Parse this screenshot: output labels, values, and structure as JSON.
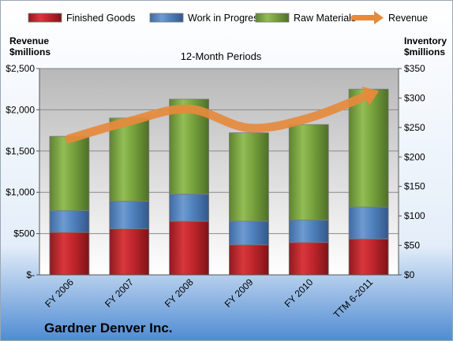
{
  "chart_data": {
    "type": "bar",
    "subtitle": "12-Month Periods",
    "company": "Gardner Denver Inc.",
    "categories": [
      "FY 2006",
      "FY 2007",
      "FY 2008",
      "FY 2009",
      "FY 2010",
      "TTM 6-2011"
    ],
    "left_axis": {
      "label_line1": "Revenue",
      "label_line2": "$millions",
      "ylim": [
        0,
        2500
      ],
      "ticks": [
        0,
        500,
        1000,
        1500,
        2000,
        2500
      ],
      "tick_labels": [
        "$-",
        "$500",
        "$1,000",
        "$1,500",
        "$2,000",
        "$2,500"
      ]
    },
    "right_axis": {
      "label_line1": "Inventory",
      "label_line2": "$millions",
      "ylim": [
        0,
        350
      ],
      "ticks": [
        0,
        50,
        100,
        150,
        200,
        250,
        300,
        350
      ],
      "tick_labels": [
        "$0",
        "$50",
        "$100",
        "$150",
        "$200",
        "$250",
        "$300",
        "$350"
      ]
    },
    "stacked_series_axis": "right",
    "series": [
      {
        "name": "Finished Goods",
        "color": "#c0262c",
        "values": [
          72,
          78,
          91,
          51,
          55,
          61
        ]
      },
      {
        "name": "Work in Progress",
        "color": "#4f81bd",
        "values": [
          37,
          47,
          46,
          40,
          38,
          54
        ]
      },
      {
        "name": "Raw Materials",
        "color": "#77a23c",
        "values": [
          126,
          141,
          161,
          150,
          162,
          200
        ]
      }
    ],
    "line_series": {
      "name": "Revenue",
      "axis": "left",
      "color": "#e68a3c",
      "values": [
        1650,
        1860,
        2010,
        1780,
        1900,
        2180
      ]
    },
    "legend_position": "top",
    "grid": true
  }
}
